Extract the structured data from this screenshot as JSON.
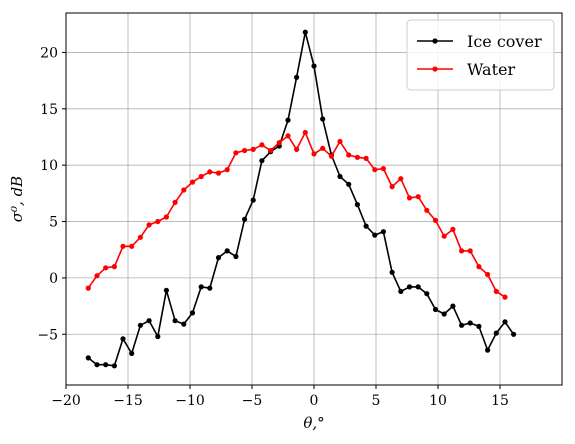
{
  "chart_data": {
    "type": "line",
    "xlabel": "θ,°",
    "ylabel": "σ⁰, dB",
    "xlim": [
      -20,
      20
    ],
    "ylim": [
      -9.5,
      23.5
    ],
    "xticks": [
      -20,
      -15,
      -10,
      -5,
      0,
      5,
      10,
      15
    ],
    "yticks": [
      -5,
      0,
      5,
      10,
      15,
      20
    ],
    "grid": true,
    "legend": "top-right",
    "series": [
      {
        "name": "Ice cover",
        "color": "#000000",
        "x": [
          -18.2,
          -17.5,
          -16.8,
          -16.1,
          -15.4,
          -14.7,
          -14.0,
          -13.3,
          -12.6,
          -11.9,
          -11.2,
          -10.5,
          -9.8,
          -9.1,
          -8.4,
          -7.7,
          -7.0,
          -6.3,
          -5.6,
          -4.9,
          -4.2,
          -3.5,
          -2.8,
          -2.1,
          -1.4,
          -0.7,
          0.0,
          0.7,
          1.4,
          2.1,
          2.8,
          3.5,
          4.2,
          4.9,
          5.6,
          6.3,
          7.0,
          7.7,
          8.4,
          9.1,
          9.8,
          10.5,
          11.2,
          11.9,
          12.6,
          13.3,
          14.0,
          14.7,
          15.4,
          16.1,
          16.8,
          17.5,
          18.2
        ],
        "y": [
          -7.1,
          -7.7,
          -7.7,
          -7.8,
          -5.4,
          -6.7,
          -4.2,
          -3.8,
          -5.2,
          -1.1,
          -3.8,
          -4.1,
          -3.1,
          -0.8,
          -0.9,
          1.8,
          2.4,
          1.9,
          5.2,
          6.9,
          10.4,
          11.2,
          11.7,
          14.0,
          17.8,
          21.8,
          18.8,
          14.1,
          10.9,
          9.0,
          8.3,
          6.5,
          4.6,
          3.8,
          4.1,
          0.5,
          -1.2,
          -0.8,
          -0.8,
          -1.4,
          -2.8,
          -3.2,
          -2.5,
          -4.2,
          -4.0,
          -4.3,
          -6.4,
          -4.9,
          -3.9,
          -5.0,
          null,
          null,
          null
        ]
      },
      {
        "name": "Water",
        "color": "#ff0000",
        "x": [
          -18.2,
          -17.5,
          -16.8,
          -16.1,
          -15.4,
          -14.7,
          -14.0,
          -13.3,
          -12.6,
          -11.9,
          -11.2,
          -10.5,
          -9.8,
          -9.1,
          -8.4,
          -7.7,
          -7.0,
          -6.3,
          -5.6,
          -4.9,
          -4.2,
          -3.5,
          -2.8,
          -2.1,
          -1.4,
          -0.7,
          0.0,
          0.7,
          1.4,
          2.1,
          2.8,
          3.5,
          4.2,
          4.9,
          5.6,
          6.3,
          7.0,
          7.7,
          8.4,
          9.1,
          9.8,
          10.5,
          11.2,
          11.9,
          12.6,
          13.3,
          14.0,
          14.7,
          15.4,
          16.1,
          16.8,
          17.5,
          18.2
        ],
        "y": [
          -0.9,
          0.2,
          0.9,
          1.0,
          2.8,
          2.8,
          3.6,
          4.7,
          5.0,
          5.4,
          6.7,
          7.8,
          8.5,
          9.0,
          9.4,
          9.3,
          9.6,
          11.1,
          11.3,
          11.4,
          11.8,
          11.3,
          12.0,
          12.6,
          11.4,
          12.9,
          11.0,
          11.5,
          10.8,
          12.1,
          10.9,
          10.7,
          10.6,
          9.6,
          9.7,
          8.1,
          8.8,
          7.1,
          7.2,
          6.0,
          5.1,
          3.7,
          4.3,
          2.4,
          2.4,
          1.0,
          0.3,
          -1.2,
          -1.7,
          null,
          null,
          null,
          null
        ]
      }
    ]
  }
}
